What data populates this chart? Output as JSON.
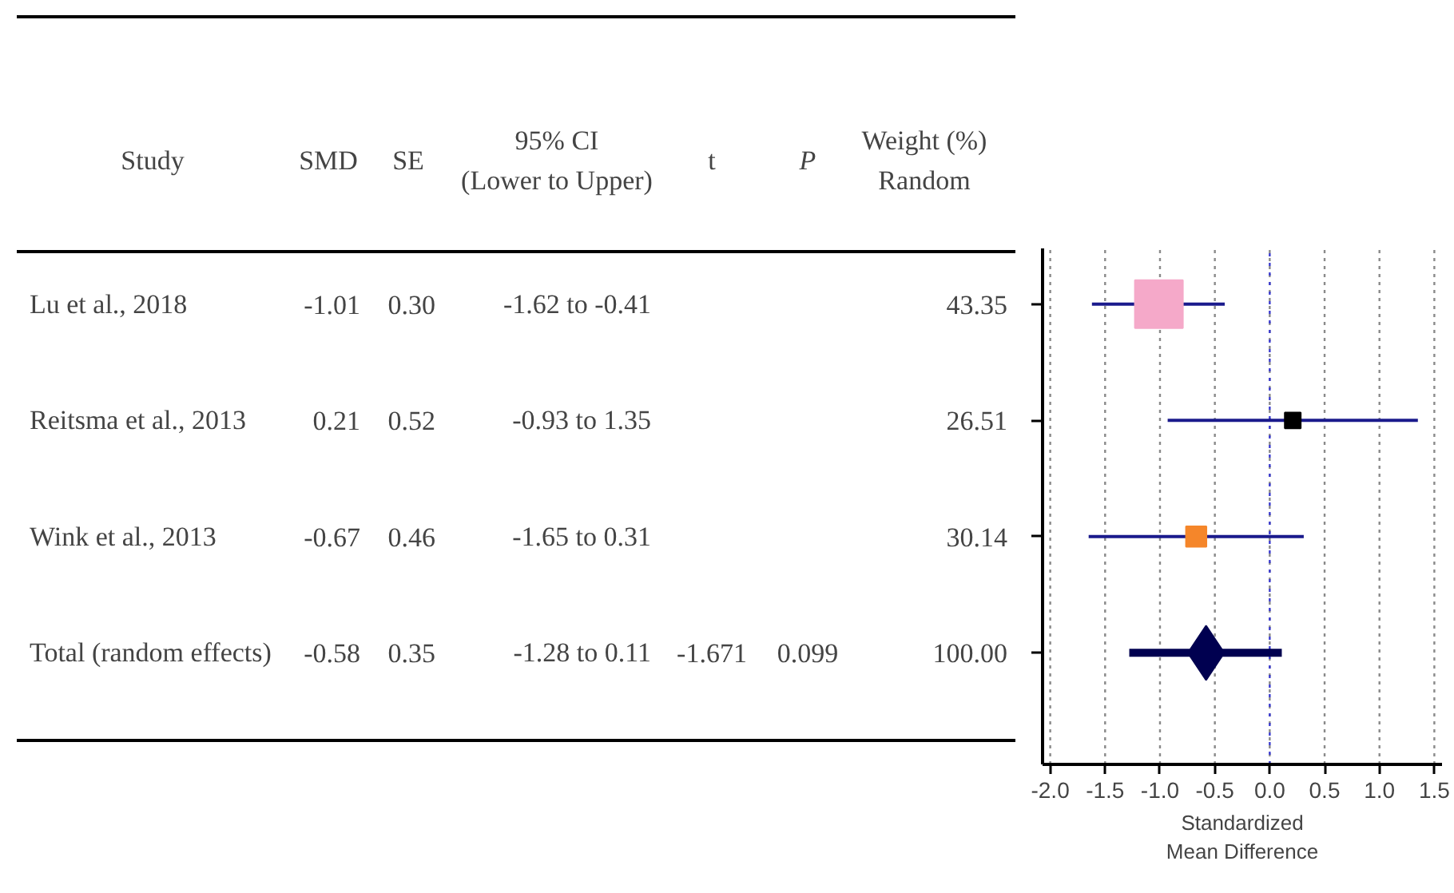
{
  "chart_data": [
    {
      "type": "other",
      "categories": [
        "Study",
        "SMD",
        "SE",
        "95% CI\n(Lower to Upper)",
        "t",
        "P",
        "Weight (%)\nRandom"
      ],
      "cell_labels": [
        [
          "Lu et al., 2018",
          "-1.01",
          "0.30",
          "-1.62 to -0.41",
          null,
          null,
          "43.35"
        ],
        [
          "Reitsma et al., 2013",
          "0.21",
          "0.52",
          "-0.93 to 1.35",
          null,
          null,
          "26.51"
        ],
        [
          "Wink et al., 2013",
          "-0.67",
          "0.46",
          "-1.65 to 0.31",
          null,
          null,
          "30.14"
        ],
        [
          "Total (random effects)",
          "-0.58",
          "0.35",
          "-1.28 to 0.11",
          "-1.671",
          "0.099",
          "100.00"
        ]
      ]
    },
    {
      "type": "scatter",
      "orientation": "horizontal",
      "xlabel": "Standardized\nMean Difference",
      "categories": [
        null,
        null,
        null,
        null
      ],
      "series": [
        {
          "type": "scatter",
          "marker": "square",
          "values": [
            -1.01,
            0.21,
            -0.67,
            null
          ],
          "colors": [
            "#f5a9c9",
            "#000000",
            "#f5862a",
            null
          ],
          "sizes": [
            1,
            0.11,
            0.18,
            null
          ],
          "errors": [
            [
              -1.62,
              -0.41
            ],
            [
              -0.93,
              1.35
            ],
            [
              -1.65,
              0.31
            ],
            null
          ]
        },
        {
          "type": "scatter",
          "marker": "diamond",
          "color": "#000050",
          "values": [
            null,
            null,
            null,
            -0.58
          ],
          "errors": [
            null,
            null,
            null,
            [
              -1.28,
              0.11
            ]
          ]
        }
      ],
      "xlim": [
        -2.07,
        1.57
      ],
      "xticks": [
        {
          "value": -2,
          "label": "-2.0"
        },
        {
          "value": -1.5,
          "label": "-1.5"
        },
        {
          "value": -1,
          "label": "-1.0"
        },
        {
          "value": -0.5,
          "label": "-0.5"
        },
        {
          "value": 0,
          "label": "0.0"
        },
        {
          "value": 0.5,
          "label": "0.5"
        },
        {
          "value": 1,
          "label": "1.0"
        },
        {
          "value": 1.5,
          "label": "1.5"
        }
      ],
      "grid": "x",
      "ref_lines": [
        {
          "axis": "x",
          "value": 0,
          "color": "#3b3bd0",
          "line_style": "dotted"
        }
      ],
      "tick_labels": "x"
    }
  ]
}
